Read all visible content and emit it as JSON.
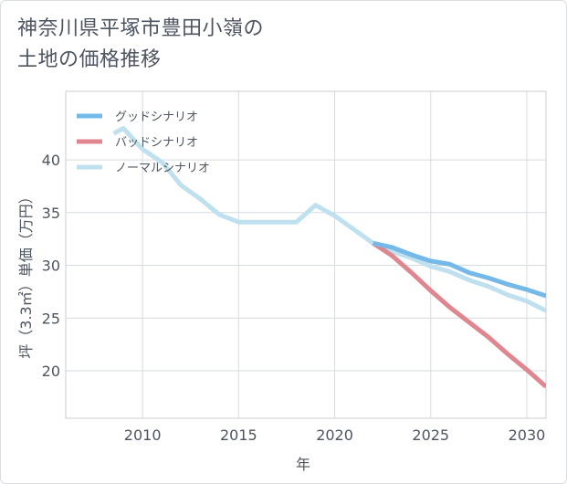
{
  "chart_data": {
    "type": "line",
    "title_lines": [
      "神奈川県平塚市豊田小嶺の",
      "土地の価格推移"
    ],
    "xlabel": "年",
    "ylabel": "坪（3.3㎡）単価（万円）",
    "xlim": [
      2006,
      2031
    ],
    "ylim": [
      15.5,
      46.5
    ],
    "x_ticks": [
      2010,
      2015,
      2020,
      2025,
      2030
    ],
    "y_ticks": [
      20,
      25,
      30,
      35,
      40
    ],
    "grid": true,
    "legend_position": "top-left",
    "series": [
      {
        "name": "グッドシナリオ",
        "color": "#74b9e8",
        "x": [
          2022,
          2023,
          2024,
          2025,
          2026,
          2027,
          2028,
          2029,
          2030,
          2031
        ],
        "y": [
          32.1,
          31.7,
          31.0,
          30.4,
          30.1,
          29.3,
          28.8,
          28.2,
          27.7,
          27.1
        ]
      },
      {
        "name": "バッドシナリオ",
        "color": "#e0868f",
        "x": [
          2022,
          2023,
          2024,
          2025,
          2026,
          2027,
          2028,
          2029,
          2030,
          2031
        ],
        "y": [
          32.1,
          30.9,
          29.3,
          27.6,
          26.0,
          24.6,
          23.2,
          21.6,
          20.1,
          18.5
        ]
      },
      {
        "name": "ノーマルシナリオ",
        "color": "#bfe0ee",
        "x": [
          2008.5,
          2009,
          2010,
          2011,
          2012,
          2013,
          2014,
          2015,
          2016,
          2017,
          2018,
          2019,
          2020,
          2021,
          2022,
          2023,
          2024,
          2025,
          2026,
          2027,
          2028,
          2029,
          2030,
          2031
        ],
        "y": [
          42.5,
          43.0,
          41.0,
          39.8,
          37.6,
          36.3,
          34.8,
          34.1,
          34.1,
          34.1,
          34.1,
          35.7,
          34.7,
          33.4,
          32.1,
          31.3,
          30.7,
          29.9,
          29.4,
          28.6,
          28.0,
          27.2,
          26.6,
          25.7
        ]
      }
    ]
  }
}
